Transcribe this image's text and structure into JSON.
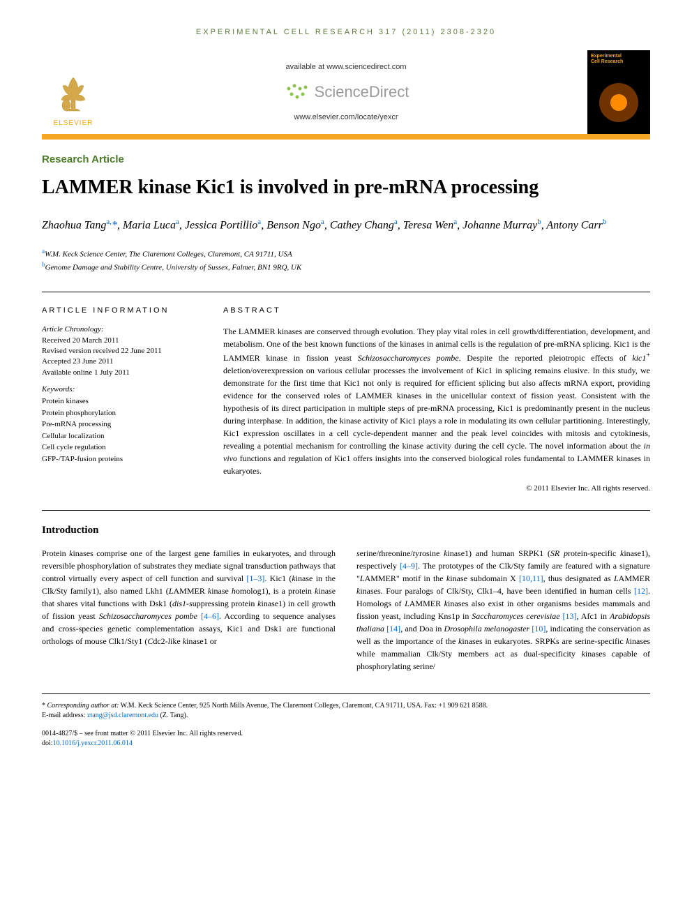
{
  "journal_header": "EXPERIMENTAL CELL RESEARCH 317 (2011) 2308-2320",
  "header": {
    "elsevier": "ELSEVIER",
    "available": "available at www.sciencedirect.com",
    "sciencedirect": "ScienceDirect",
    "locate": "www.elsevier.com/locate/yexcr",
    "cover_title": "Experimental\nCell Research"
  },
  "article": {
    "type_label": "Research Article",
    "title": "LAMMER kinase Kic1 is involved in pre-mRNA processing",
    "authors_html": "Zhaohua Tang<sup>a,</sup><span class='corr'>*</span>, Maria Luca<sup>a</sup>, Jessica Portillio<sup>a</sup>, Benson Ngo<sup>a</sup>, Cathey Chang<sup>a</sup>, Teresa Wen<sup>a</sup>, Johanne Murray<sup>b</sup>, Antony Carr<sup>b</sup>",
    "affiliations": [
      {
        "sup": "a",
        "text": "W.M. Keck Science Center, The Claremont Colleges, Claremont, CA 91711, USA"
      },
      {
        "sup": "b",
        "text": "Genome Damage and Stability Centre, University of Sussex, Falmer, BN1 9RQ, UK"
      }
    ]
  },
  "info": {
    "heading": "ARTICLE INFORMATION",
    "chronology_label": "Article Chronology:",
    "chronology": "Received 20 March 2011\nRevised version received 22 June 2011\nAccepted 23 June 2011\nAvailable online 1 July 2011",
    "keywords_label": "Keywords:",
    "keywords": "Protein kinases\nProtein phosphorylation\nPre-mRNA processing\nCellular localization\nCell cycle regulation\nGFP-/TAP-fusion proteins"
  },
  "abstract": {
    "heading": "ABSTRACT",
    "text": "The LAMMER kinases are conserved through evolution. They play vital roles in cell growth/differentiation, development, and metabolism. One of the best known functions of the kinases in animal cells is the regulation of pre-mRNA splicing. Kic1 is the LAMMER kinase in fission yeast Schizosaccharomyces pombe. Despite the reported pleiotropic effects of kic1+ deletion/overexpression on various cellular processes the involvement of Kic1 in splicing remains elusive. In this study, we demonstrate for the first time that Kic1 not only is required for efficient splicing but also affects mRNA export, providing evidence for the conserved roles of LAMMER kinases in the unicellular context of fission yeast. Consistent with the hypothesis of its direct participation in multiple steps of pre-mRNA processing, Kic1 is predominantly present in the nucleus during interphase. In addition, the kinase activity of Kic1 plays a role in modulating its own cellular partitioning. Interestingly, Kic1 expression oscillates in a cell cycle-dependent manner and the peak level coincides with mitosis and cytokinesis, revealing a potential mechanism for controlling the kinase activity during the cell cycle. The novel information about the in vivo functions and regulation of Kic1 offers insights into the conserved biological roles fundamental to LAMMER kinases in eukaryotes.",
    "copyright": "© 2011 Elsevier Inc. All rights reserved."
  },
  "intro": {
    "heading": "Introduction",
    "col1": "Protein kinases comprise one of the largest gene families in eukaryotes, and through reversible phosphorylation of substrates they mediate signal transduction pathways that control virtually every aspect of cell function and survival [1–3]. Kic1 (kinase in the Clk/Sty family1), also named Lkh1 (LAMMER kinase homolog1), is a protein kinase that shares vital functions with Dsk1 (dis1-suppressing protein kinase1) in cell growth of fission yeast Schizosaccharomyces pombe [4–6]. According to sequence analyses and cross-species genetic complementation assays, Kic1 and Dsk1 are functional orthologs of mouse Clk1/Sty1 (Cdc2-like kinase1 or",
    "col2": "serine/threonine/tyrosine kinase1) and human SRPK1 (SR protein-specific kinase1), respectively [4–9]. The prototypes of the Clk/Sty family are featured with a signature \"LAMMER\" motif in the kinase subdomain X [10,11], thus designated as LAMMER kinases. Four paralogs of Clk/Sty, Clk1–4, have been identified in human cells [12]. Homologs of LAMMER kinases also exist in other organisms besides mammals and fission yeast, including Kns1p in Saccharomyces cerevisiae [13], Afc1 in Arabidopsis thaliana [14], and Doa in Drosophila melanogaster [10], indicating the conservation as well as the importance of the kinases in eukaryotes. SRPKs are serine-specific kinases while mammalian Clk/Sty members act as dual-specificity kinases capable of phosphorylating serine/"
  },
  "footer": {
    "corr": "* Corresponding author at: W.M. Keck Science Center, 925 North Mills Avenue, The Claremont Colleges, Claremont, CA 91711, USA. Fax: +1 909 621 8588.",
    "email_label": "E-mail address: ",
    "email": "ztang@jsd.claremont.edu",
    "email_person": " (Z. Tang).",
    "issn": "0014-4827/$ – see front matter © 2011 Elsevier Inc. All rights reserved.",
    "doi_label": "doi:",
    "doi": "10.1016/j.yexcr.2011.06.014"
  },
  "colors": {
    "green": "#4a7a2a",
    "orange": "#f5a623",
    "link": "#0066cc",
    "header_green": "#5a7a3a"
  }
}
